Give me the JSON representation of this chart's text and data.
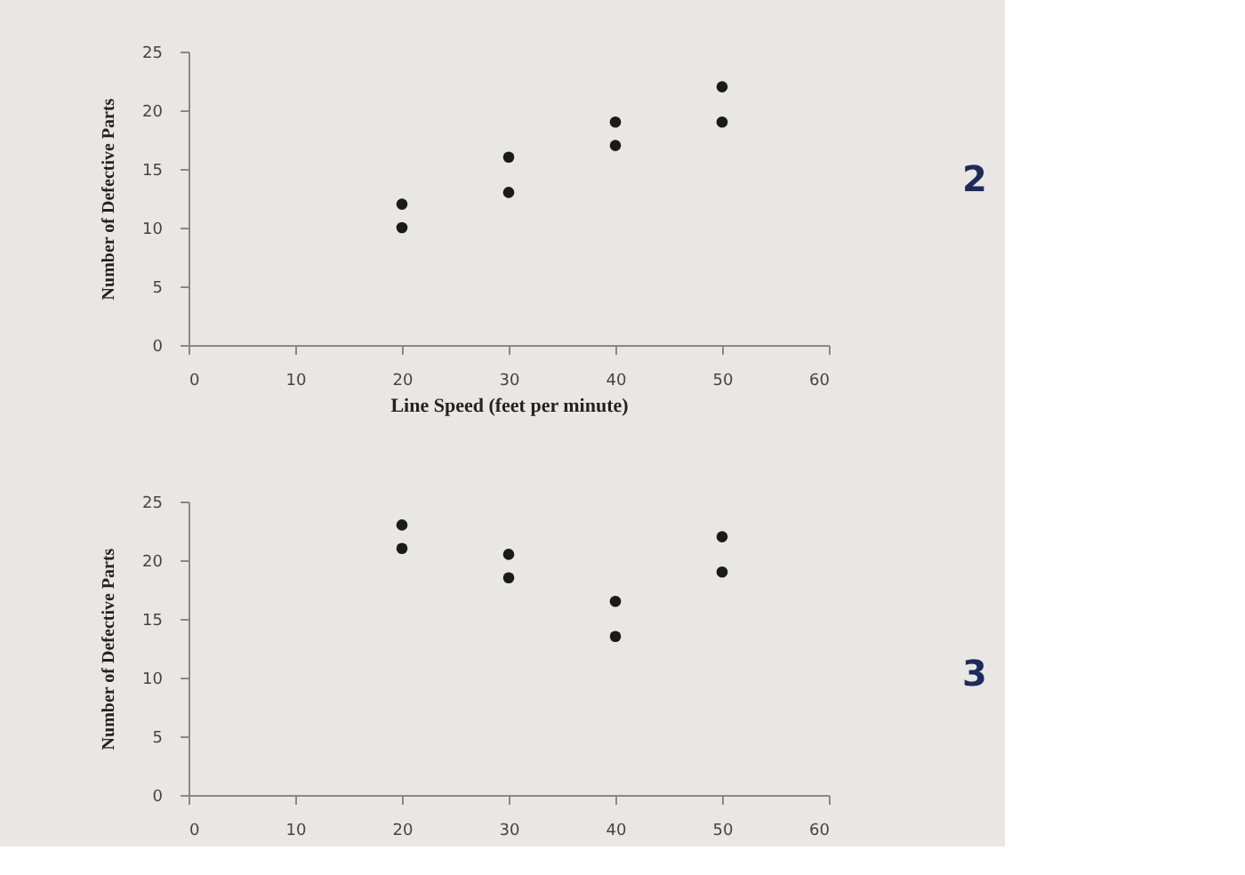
{
  "chart_data": [
    {
      "type": "scatter",
      "xlabel": "Line Speed (feet per minute)",
      "ylabel": "Number of Defective Parts",
      "annotations": [
        "2"
      ],
      "x": [
        20,
        20,
        30,
        30,
        40,
        40,
        50,
        50
      ],
      "series": [
        {
          "color": "#1a1a1a",
          "values": [
            12,
            10,
            16,
            13,
            19,
            17,
            22,
            19
          ]
        }
      ],
      "xlim": [
        0,
        60
      ],
      "xticks": [
        0,
        10,
        20,
        30,
        40,
        50,
        60
      ],
      "ylim": [
        0,
        25
      ],
      "yticks": [
        0,
        5,
        10,
        15,
        20,
        25
      ],
      "grid": false,
      "marker": "circle"
    },
    {
      "type": "scatter",
      "ylabel": "Number of Defective Parts",
      "annotations": [
        "3"
      ],
      "x": [
        20,
        20,
        30,
        30,
        40,
        40,
        50,
        50
      ],
      "series": [
        {
          "color": "#1a1a1a",
          "values": [
            23,
            21,
            20.5,
            18.5,
            16.5,
            13.5,
            22,
            19
          ]
        }
      ],
      "xlim": [
        0,
        60
      ],
      "xticks": [
        0,
        10,
        20,
        30,
        40,
        50,
        60
      ],
      "ylim": [
        0,
        25
      ],
      "yticks": [
        0,
        5,
        10,
        15,
        20,
        25
      ],
      "grid": false,
      "marker": "circle"
    }
  ]
}
